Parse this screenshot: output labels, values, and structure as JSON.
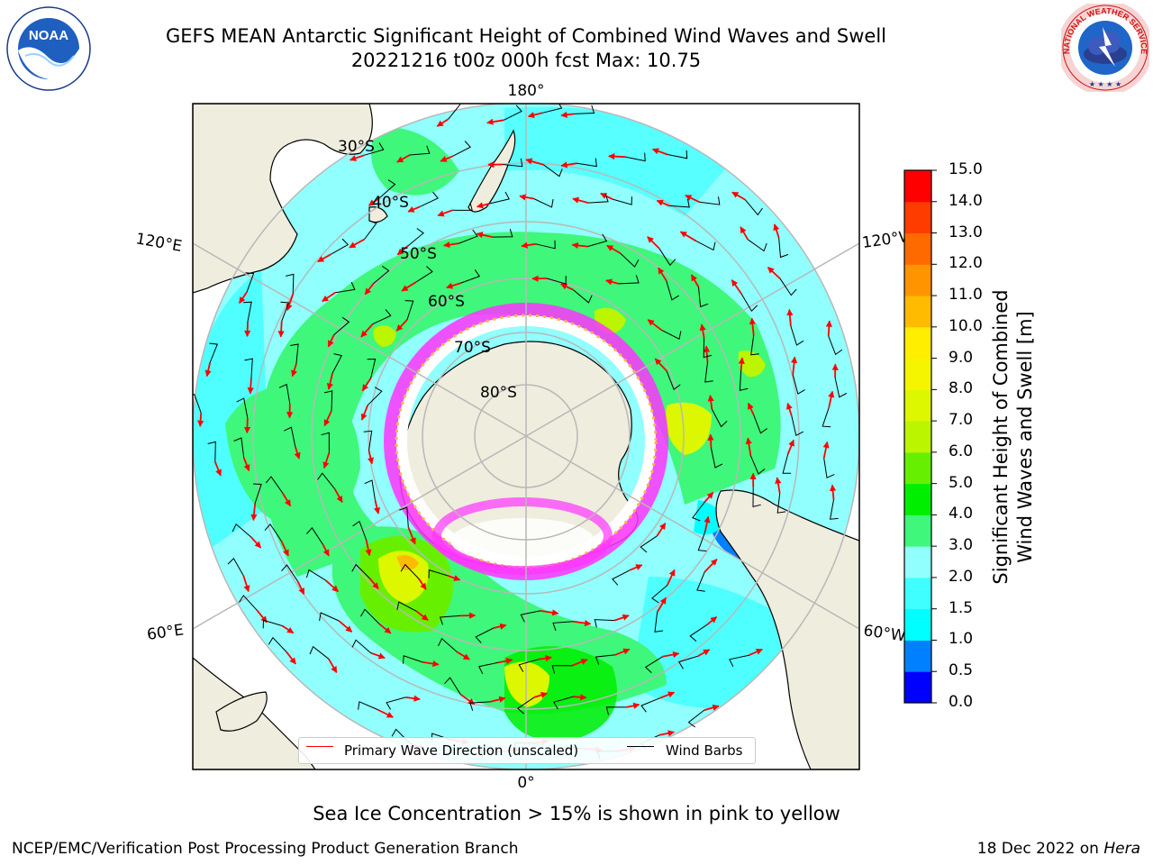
{
  "header": {
    "title": "GEFS MEAN Antarctic Significant Height of Combined Wind Waves and Swell",
    "subtitle": "20221216 t00z 000h fcst   Max: 10.75"
  },
  "logos": {
    "left_text": "NOAA",
    "left_ring": "NATIONAL OCEANIC AND ATMOSPHERIC ADMINISTRATION · U.S. DEPARTMENT OF COMMERCE",
    "right_ring": "NATIONAL WEATHER SERVICE"
  },
  "map": {
    "projection": "south-polar-stereographic",
    "longitude_labels": {
      "top": "180°",
      "bottom": "0°",
      "left_upper": "120°E",
      "left_lower": "60°E",
      "right_upper": "120°W",
      "right_lower": "60°W"
    },
    "latitude_labels": [
      "30°S",
      "40°S",
      "50°S",
      "60°S",
      "70°S",
      "80°S"
    ],
    "colors": {
      "land": "#efedde",
      "ocean_low": "#7ffaff",
      "ocean_mid": "#7dfcfe",
      "green": "#19f419",
      "yellow": "#f0f50a",
      "ice_pink": "#ff33ff",
      "ice_yellow": "#ffb347",
      "arrow": "#ff0000",
      "barb": "#000000",
      "grid": "#b8b8b8"
    }
  },
  "legend": {
    "wave_label": "Primary Wave Direction (unscaled)",
    "barb_label": "Wind Barbs",
    "wave_color": "#ff0000",
    "barb_color": "#000000"
  },
  "colorbar": {
    "label_line1": "Significant Height of Combined",
    "label_line2": "Wind Waves and Swell [m]",
    "ticks": [
      "15.0",
      "14.0",
      "13.0",
      "12.0",
      "11.0",
      "10.0",
      "9.0",
      "8.0",
      "7.0",
      "6.0",
      "5.0",
      "4.0",
      "3.0",
      "2.0",
      "1.5",
      "1.0",
      "0.5",
      "0.0"
    ],
    "bands": [
      {
        "range": "0.0-0.5",
        "color": "#0000ff"
      },
      {
        "range": "0.5-1.0",
        "color": "#0080ff"
      },
      {
        "range": "1.0-1.5",
        "color": "#00ffff"
      },
      {
        "range": "1.5-2.0",
        "color": "#3fffff"
      },
      {
        "range": "2.0-3.0",
        "color": "#90fffd"
      },
      {
        "range": "3.0-4.0",
        "color": "#3ff77a"
      },
      {
        "range": "4.0-5.0",
        "color": "#00ee00"
      },
      {
        "range": "5.0-6.0",
        "color": "#66f000"
      },
      {
        "range": "6.0-7.0",
        "color": "#bbf500"
      },
      {
        "range": "7.0-8.0",
        "color": "#dcf700"
      },
      {
        "range": "8.0-9.0",
        "color": "#f5f500"
      },
      {
        "range": "9.0-10.0",
        "color": "#ffee00"
      },
      {
        "range": "10.0-11.0",
        "color": "#ffbb00"
      },
      {
        "range": "11.0-12.0",
        "color": "#ff9400"
      },
      {
        "range": "12.0-13.0",
        "color": "#ff6a00"
      },
      {
        "range": "13.0-14.0",
        "color": "#ff3c00"
      },
      {
        "range": "14.0-15.0",
        "color": "#ff0000"
      }
    ]
  },
  "caption": "Sea Ice Concentration > 15% is shown in pink to yellow",
  "footer": {
    "left": "NCEP/EMC/Verification Post Processing Product Generation Branch",
    "right_prefix": "18 Dec 2022 on ",
    "right_host": "Hera"
  }
}
